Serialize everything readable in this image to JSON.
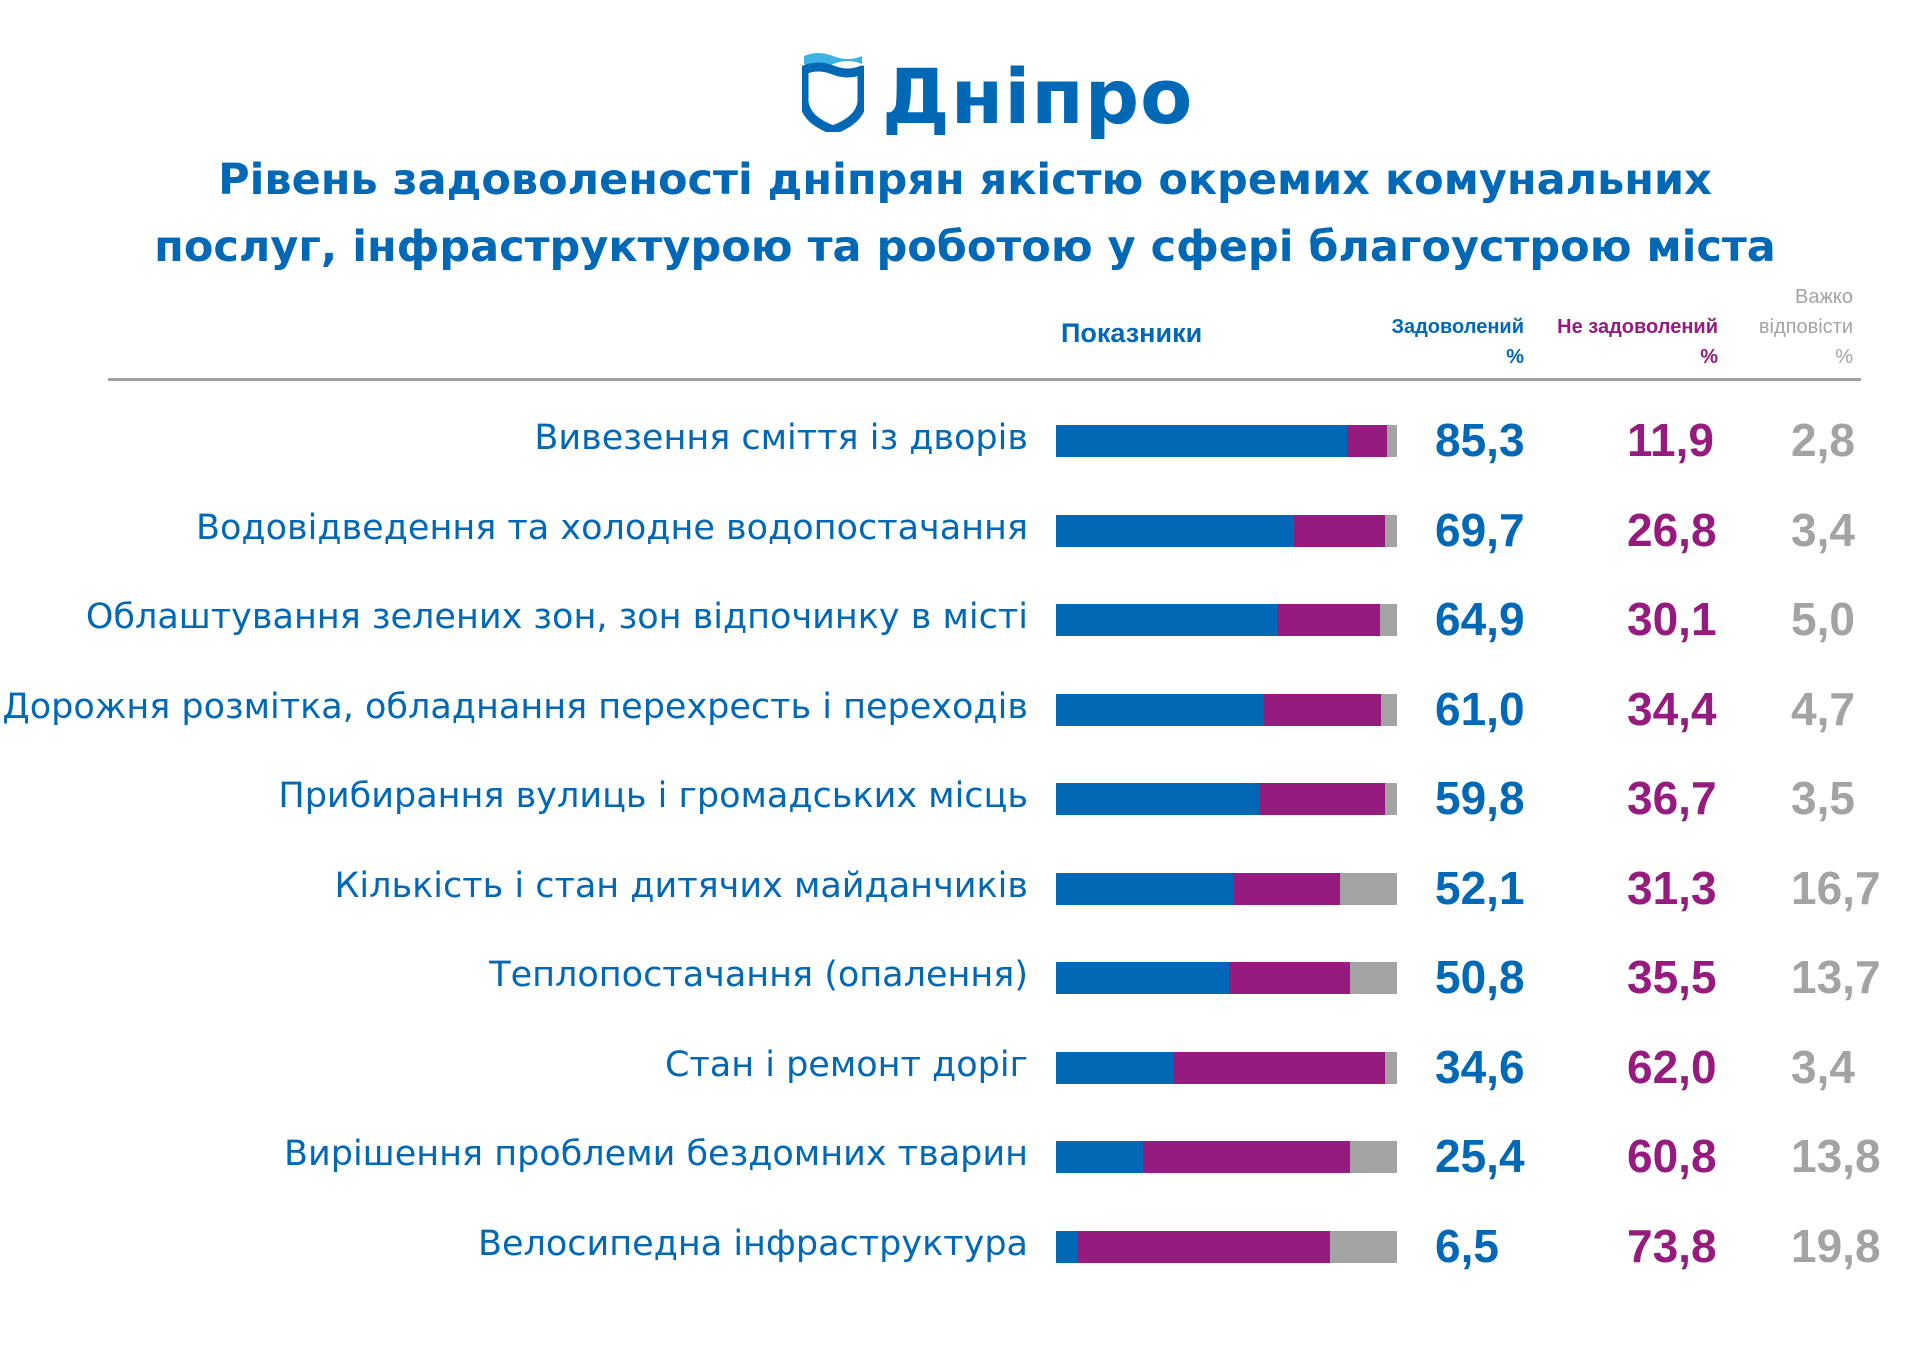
{
  "logo": {
    "text": "Дніпро"
  },
  "chart_data": {
    "type": "bar",
    "orientation": "horizontal-stacked",
    "title": [
      "Рівень задоволеності дніпрян якістю окремих комунальних",
      "послуг, інфраструктурою та роботою у сфері благоустрою міста"
    ],
    "category_header": "Показники",
    "columns": [
      {
        "name": "Задоволений",
        "unit": "%",
        "color": "#0068b4"
      },
      {
        "name": "Не задоволений",
        "unit": "%",
        "color": "#951b7e"
      },
      {
        "name": "Важко відповісти",
        "name_lines": [
          "Важко",
          "відповісти"
        ],
        "unit": "%",
        "color": "#a3a3a3"
      }
    ],
    "categories": [
      "Вивезення сміття із дворів",
      "Водовідведення та холодне водопостачання",
      "Облаштування зелених зон, зон відпочинку в місті",
      "Дорожня розмітка, обладнання перехресть і переходів",
      "Прибирання вулиць і громадських місць",
      "Кількість і стан дитячих майданчиків",
      "Теплопостачання (опалення)",
      "Стан і ремонт доріг",
      "Вирішення проблеми бездомних тварин",
      "Велосипедна інфраструктура"
    ],
    "series": [
      {
        "name": "Задоволений",
        "values": [
          85.3,
          69.7,
          64.9,
          61.0,
          59.8,
          52.1,
          50.8,
          34.6,
          25.4,
          6.5
        ],
        "labels": [
          "85,3",
          "69,7",
          "64,9",
          "61,0",
          "59,8",
          "52,1",
          "50,8",
          "34,6",
          "25,4",
          "6,5"
        ]
      },
      {
        "name": "Не задоволений",
        "values": [
          11.9,
          26.8,
          30.1,
          34.4,
          36.7,
          31.3,
          35.5,
          62.0,
          60.8,
          73.8
        ],
        "labels": [
          "11,9",
          "26,8",
          "30,1",
          "34,4",
          "36,7",
          "31,3",
          "35,5",
          "62,0",
          "60,8",
          "73,8"
        ]
      },
      {
        "name": "Важко відповісти",
        "values": [
          2.8,
          3.4,
          5.0,
          4.7,
          3.5,
          16.7,
          13.7,
          3.4,
          13.8,
          19.8
        ],
        "labels": [
          "2,8",
          "3,4",
          "5,0",
          "4,7",
          "3,5",
          "16,7",
          "13,7",
          "3,4",
          "13,8",
          "19,8"
        ]
      }
    ]
  }
}
